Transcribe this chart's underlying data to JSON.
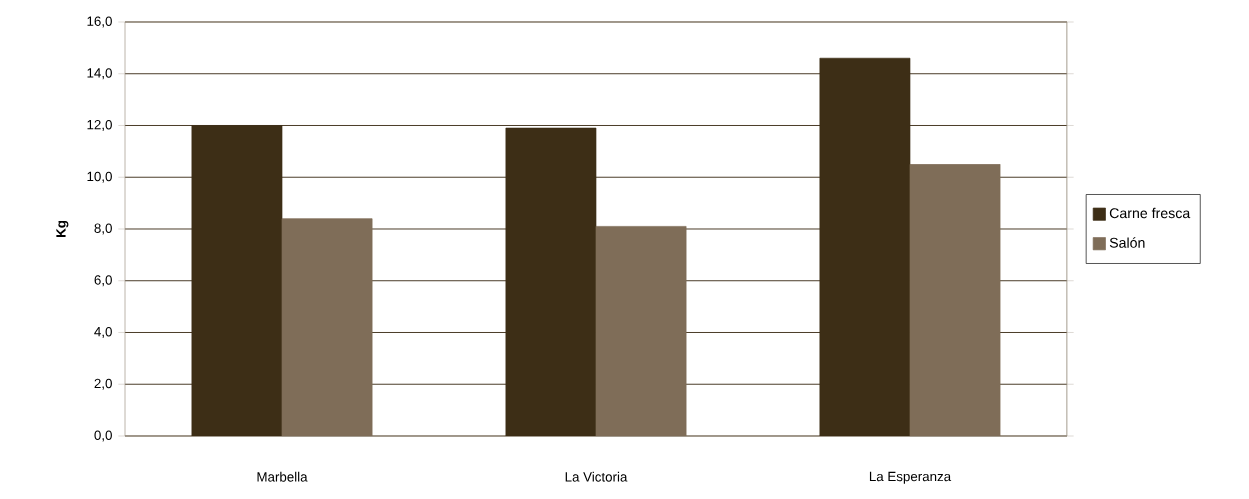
{
  "chart_data": {
    "type": "bar",
    "ylabel": "Kg",
    "categories": [
      "Marbella",
      "La Victoria",
      "La Esperanza"
    ],
    "series": [
      {
        "name": "Carne fresca",
        "color": "#3d2e16",
        "values": [
          12.0,
          11.9,
          14.6
        ]
      },
      {
        "name": "Salón",
        "color": "#7f6d58",
        "values": [
          8.4,
          8.1,
          10.5
        ]
      }
    ],
    "ylim": [
      0,
      16
    ],
    "yticks": [
      {
        "value": 0,
        "label": "0,0"
      },
      {
        "value": 2,
        "label": "2,0"
      },
      {
        "value": 4,
        "label": "4,0"
      },
      {
        "value": 6,
        "label": "6,0"
      },
      {
        "value": 8,
        "label": "8,0"
      },
      {
        "value": 10,
        "label": "10,0"
      },
      {
        "value": 12,
        "label": "12,0"
      },
      {
        "value": 14,
        "label": "14,0"
      },
      {
        "value": 16,
        "label": "16,0"
      }
    ],
    "grid": "y",
    "legend": "right"
  }
}
